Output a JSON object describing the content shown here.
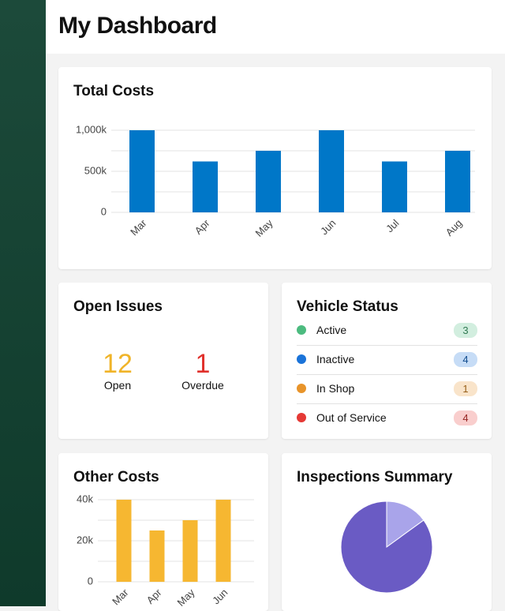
{
  "header": {
    "title": "My Dashboard"
  },
  "total_costs": {
    "type": "bar",
    "title": "Total Costs",
    "categories": [
      "Mar",
      "Apr",
      "May",
      "Jun",
      "Jul",
      "Aug"
    ],
    "values": [
      1000000,
      620000,
      750000,
      1000000,
      620000,
      750000
    ],
    "color": "#0077c8",
    "ylim": [
      0,
      1000000
    ],
    "yticks": [
      0,
      {
        "value": 500000,
        "label": "500k"
      },
      {
        "value": 1000000,
        "label": "1,000k"
      }
    ],
    "minor_yticks": [
      250000,
      750000
    ],
    "grid": true
  },
  "open_issues": {
    "title": "Open Issues",
    "items": [
      {
        "value": 12,
        "label": "Open",
        "color": "#f0b429"
      },
      {
        "value": 1,
        "label": "Overdue",
        "color": "#e0302b"
      }
    ]
  },
  "vehicle_status": {
    "title": "Vehicle Status",
    "items": [
      {
        "label": "Active",
        "count": 3,
        "color": "#4cbb7f"
      },
      {
        "label": "Inactive",
        "count": 4,
        "color": "#1a73d9"
      },
      {
        "label": "In Shop",
        "count": 1,
        "color": "#e8942a"
      },
      {
        "label": "Out of Service",
        "count": 4,
        "color": "#e53935"
      }
    ]
  },
  "other_costs": {
    "type": "bar",
    "title": "Other Costs",
    "categories": [
      "Mar",
      "Apr",
      "May",
      "Jun"
    ],
    "values": [
      40000,
      25000,
      30000,
      40000
    ],
    "color": "#f6b731",
    "ylim": [
      0,
      40000
    ],
    "yticks": [
      0,
      {
        "value": 20000,
        "label": "20k"
      },
      {
        "value": 40000,
        "label": "40k"
      }
    ],
    "minor_yticks": [
      10000,
      30000
    ],
    "grid": true
  },
  "inspections_summary": {
    "type": "pie",
    "title": "Inspections Summary",
    "values": [
      15,
      85
    ],
    "colors": [
      "#a9a4ea",
      "#6a5bc4"
    ]
  }
}
